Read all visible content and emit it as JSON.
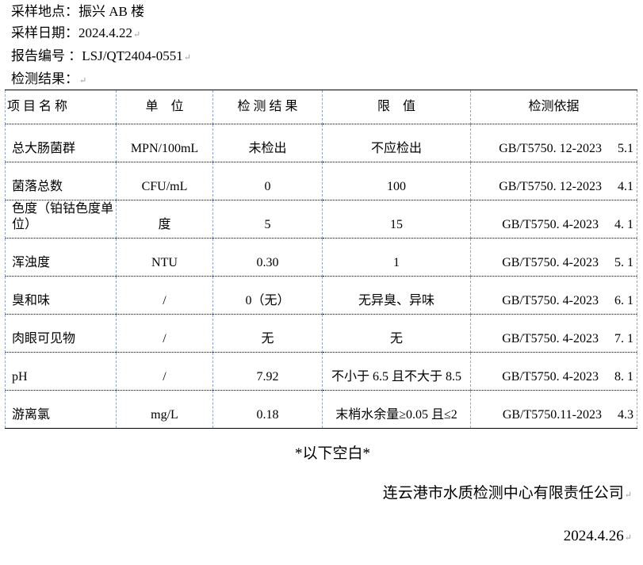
{
  "header": {
    "location": "采样地点：振兴 AB 楼",
    "date": "采样日期：2024.4.22",
    "report_no": "报告编号 ：LSJ/QT2404-0551",
    "results_label": "检测结果："
  },
  "table": {
    "headers": [
      "项 目 名 称",
      "单　位",
      "检 测 结 果",
      "限　值",
      "检测依据"
    ],
    "rows": [
      [
        "总大肠菌群",
        "MPN/100mL",
        "未检出",
        "不应检出",
        "GB/T5750. 12-2023　 5.1"
      ],
      [
        "菌落总数",
        "CFU/mL",
        "0",
        "100",
        "GB/T5750. 12-2023　 4.1"
      ],
      [
        "色度（铂钴色度单位）",
        "度",
        "5",
        "15",
        "GB/T5750. 4-2023　 4. 1"
      ],
      [
        "浑浊度",
        "NTU",
        "0.30",
        "1",
        "GB/T5750. 4-2023　 5. 1"
      ],
      [
        "臭和味",
        "/",
        "0（无）",
        "无异臭、异味",
        "GB/T5750. 4-2023　 6. 1"
      ],
      [
        "肉眼可见物",
        "/",
        "无",
        "无",
        "GB/T5750. 4-2023　 7. 1"
      ],
      [
        "pH",
        "/",
        "7.92",
        "不小于 6.5 且不大于 8.5",
        "GB/T5750. 4-2023　 8. 1"
      ],
      [
        "游离氯",
        "mg/L",
        "0.18",
        "末梢水余量≥0.05 且≤2",
        "GB/T5750.11-2023　 4.3"
      ]
    ]
  },
  "footer": {
    "blank_note": "*以下空白*",
    "company": "连云港市水质检测中心有限责任公司",
    "date": "2024.4.26"
  }
}
